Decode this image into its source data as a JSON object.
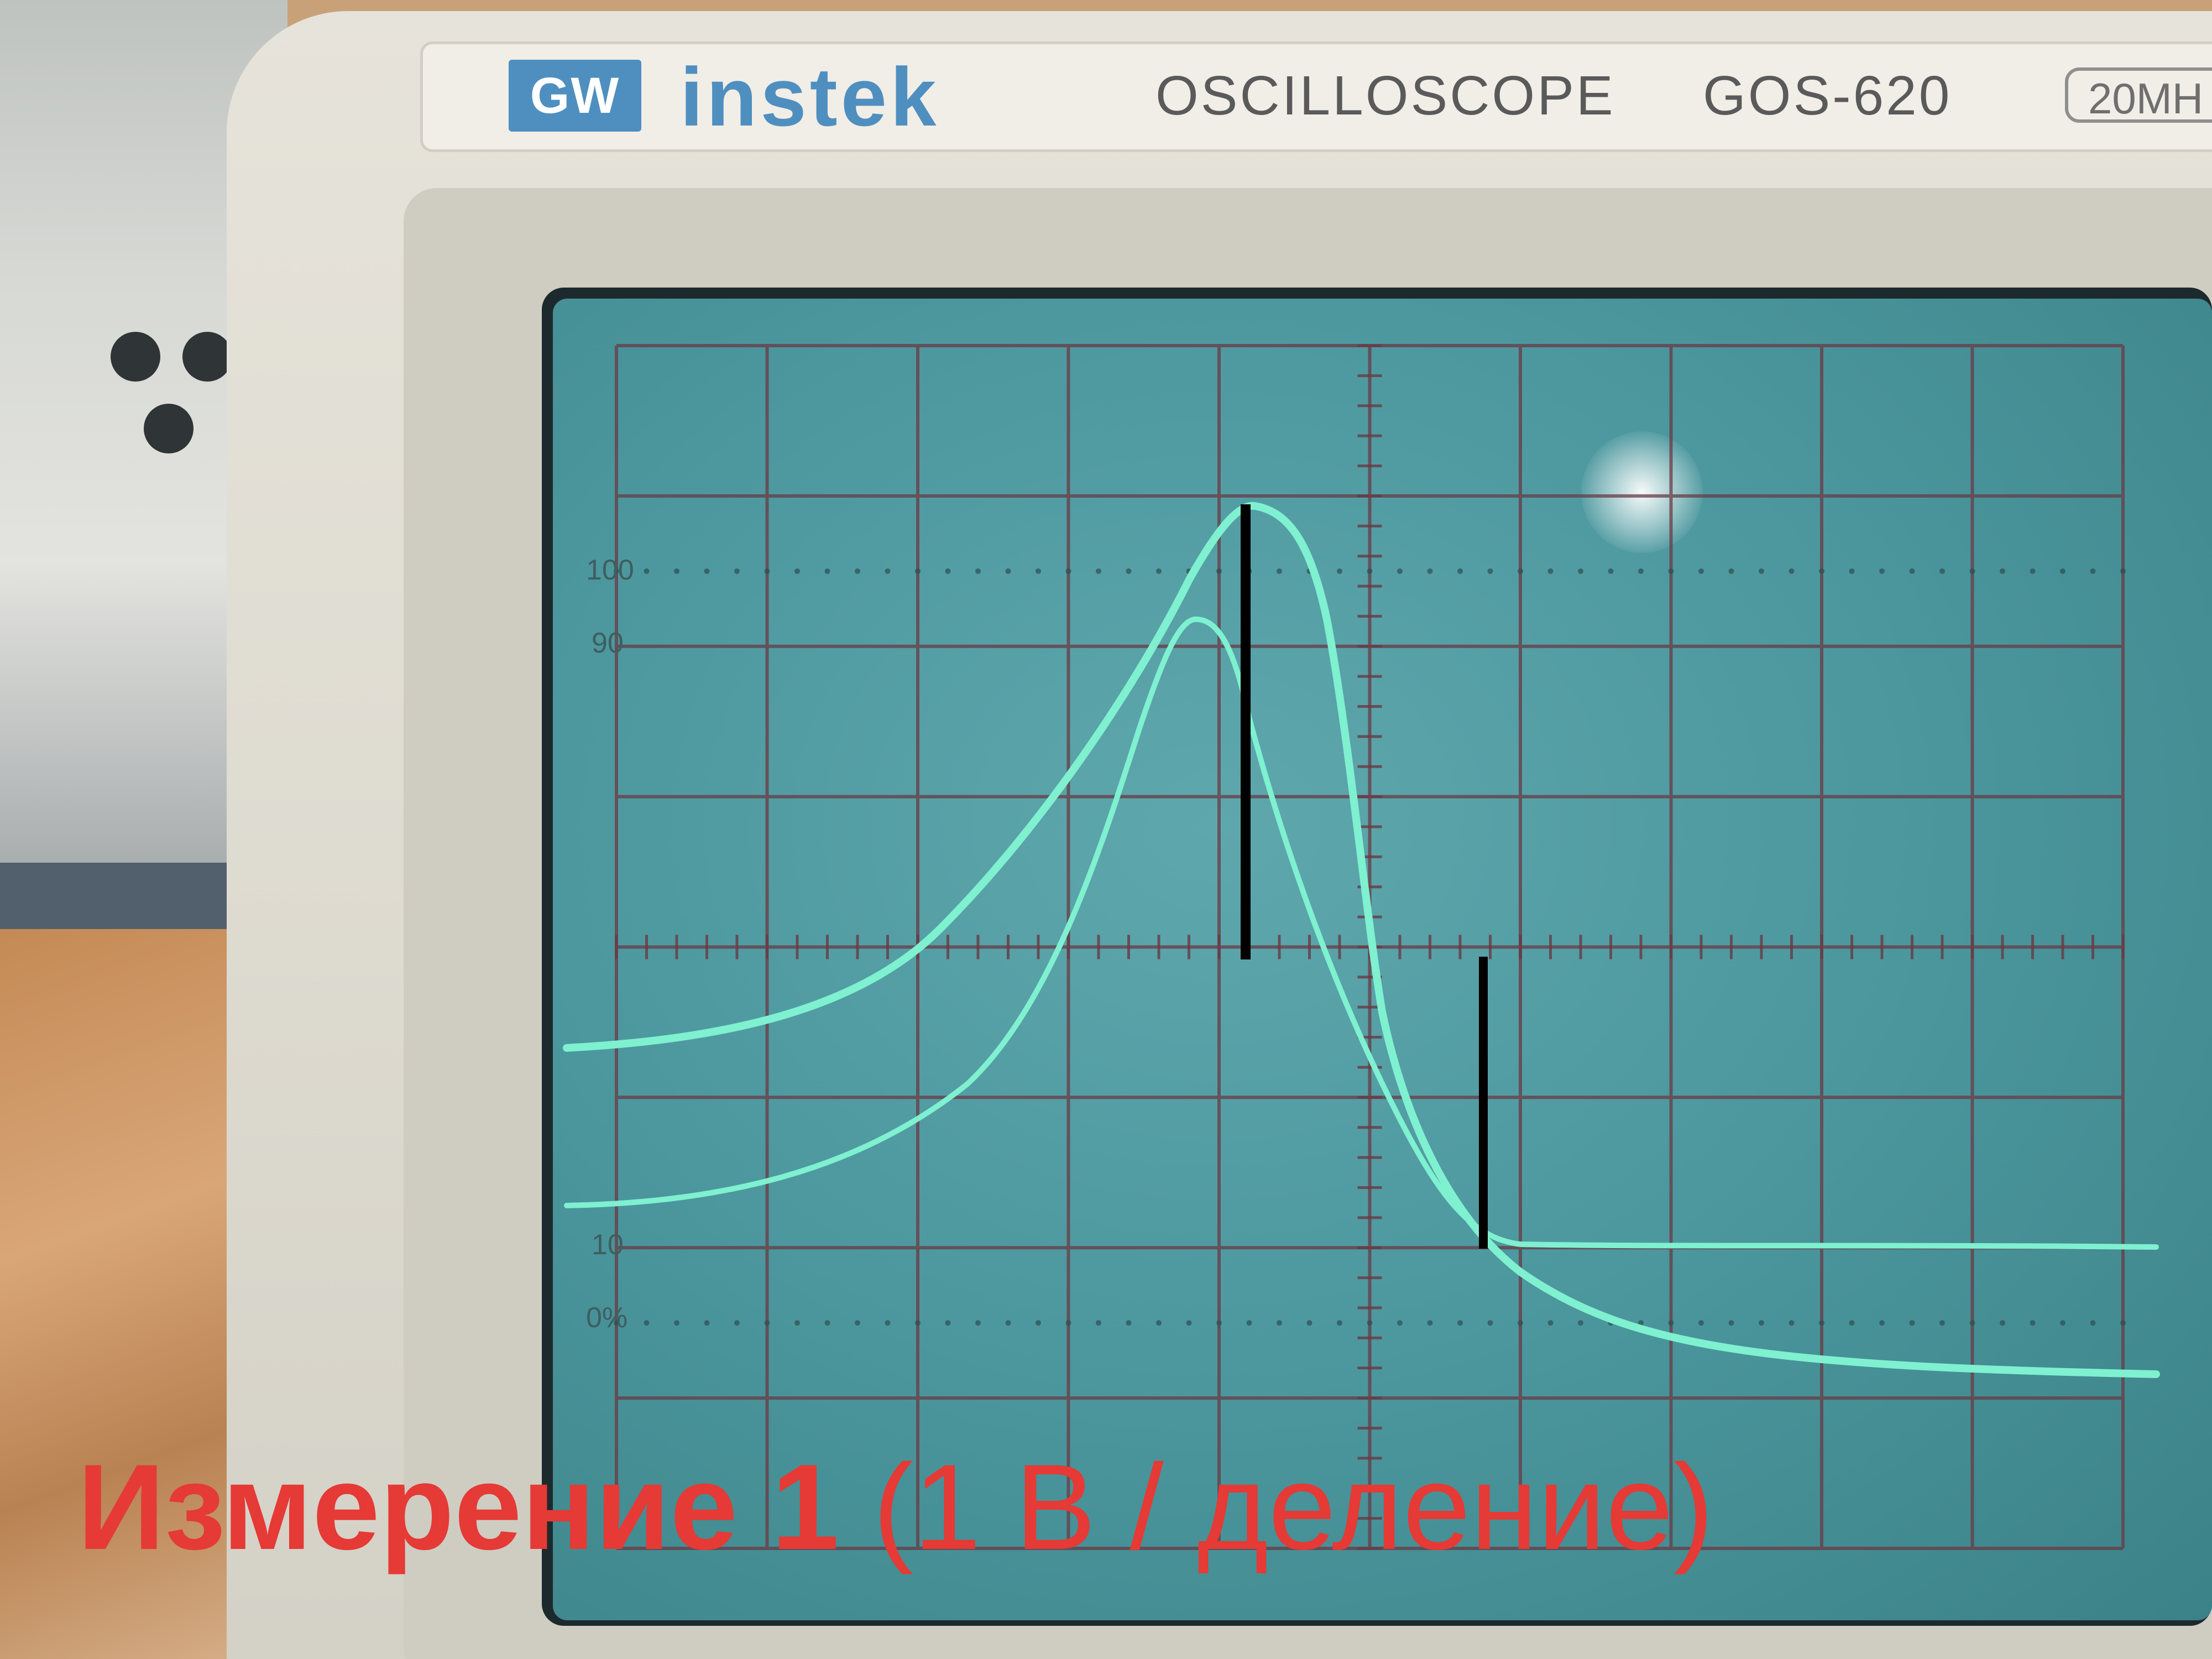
{
  "device": {
    "logo_badge": "GW",
    "brand": "instek",
    "type": "OSCILLOSCOPE",
    "model": "GOS-620",
    "bandwidth": "20MH"
  },
  "graticule": {
    "label_100": "100",
    "label_90": "90",
    "label_10": "10",
    "label_0": "0%"
  },
  "traces": {
    "color": "#6fe6c8",
    "count": 2
  },
  "caption": {
    "main": "Измерение 1",
    "sub": "(1 В / деление)",
    "color": "#e53a35"
  }
}
